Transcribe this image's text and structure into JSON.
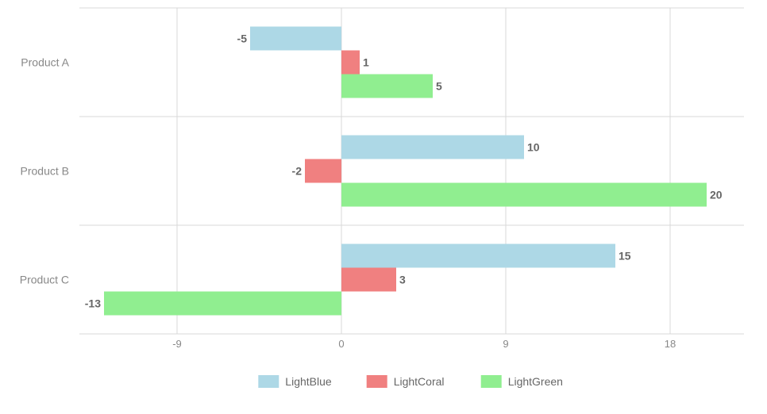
{
  "chart_data": {
    "type": "bar",
    "orientation": "horizontal",
    "categories": [
      "Product A",
      "Product B",
      "Product C"
    ],
    "series": [
      {
        "name": "LightBlue",
        "color": "#add8e6",
        "values": [
          -5,
          10,
          15
        ]
      },
      {
        "name": "LightCoral",
        "color": "#f08080",
        "values": [
          1,
          -2,
          3
        ]
      },
      {
        "name": "LightGreen",
        "color": "#90ee90",
        "values": [
          5,
          20,
          -13
        ]
      }
    ],
    "xticks": [
      -9,
      0,
      9,
      18
    ],
    "xlim": [
      -14.3,
      22
    ],
    "grid": true,
    "data_labels": true,
    "legend_position": "bottom"
  }
}
